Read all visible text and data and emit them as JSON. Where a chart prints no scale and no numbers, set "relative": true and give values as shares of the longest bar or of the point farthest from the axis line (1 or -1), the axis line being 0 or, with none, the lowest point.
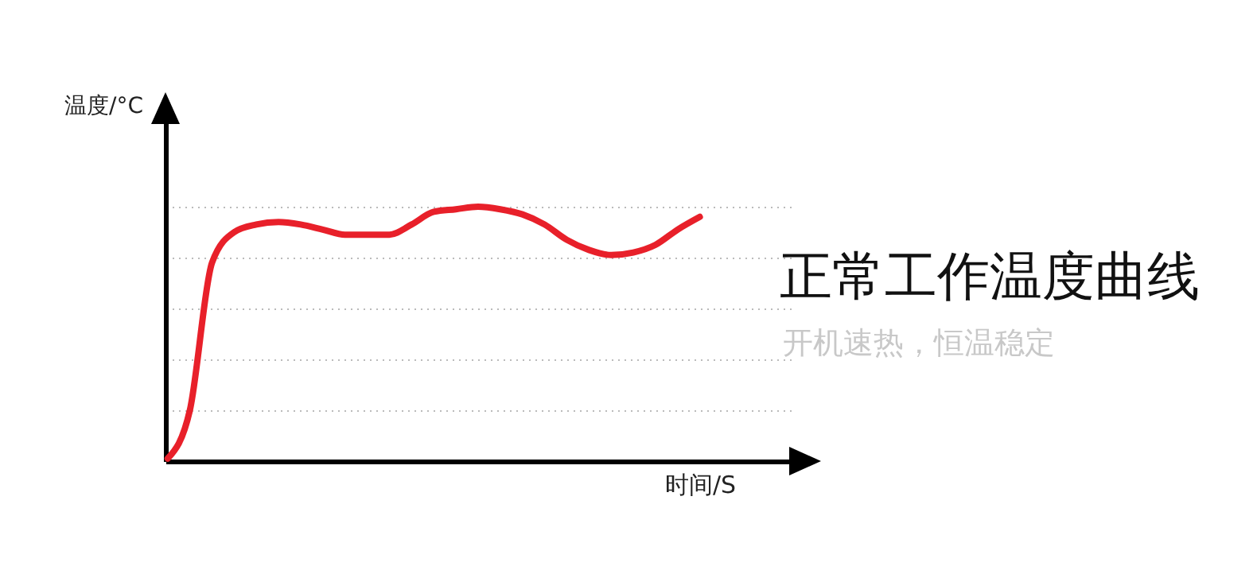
{
  "chart_data": {
    "type": "line",
    "title": "正常工作温度曲线",
    "subtitle": "开机速热，恒温稳定",
    "xlabel": "时间/S",
    "ylabel": "温度/°C",
    "relative": true,
    "grid": "y",
    "categories": [
      null,
      null,
      null,
      null,
      null,
      null,
      null,
      null,
      null,
      null,
      null,
      null,
      null,
      null,
      null,
      null,
      null,
      null,
      null,
      null,
      null,
      null,
      null,
      null,
      null
    ],
    "series": [
      {
        "color": "#e8202a",
        "values": [
          0.01,
          0.2,
          0.78,
          0.9,
          0.93,
          0.94,
          0.93,
          0.91,
          0.89,
          0.89,
          0.89,
          0.93,
          0.98,
          0.99,
          1,
          0.99,
          0.97,
          0.93,
          0.87,
          0.83,
          0.81,
          0.82,
          0.85,
          0.91,
          0.96
        ]
      }
    ]
  }
}
